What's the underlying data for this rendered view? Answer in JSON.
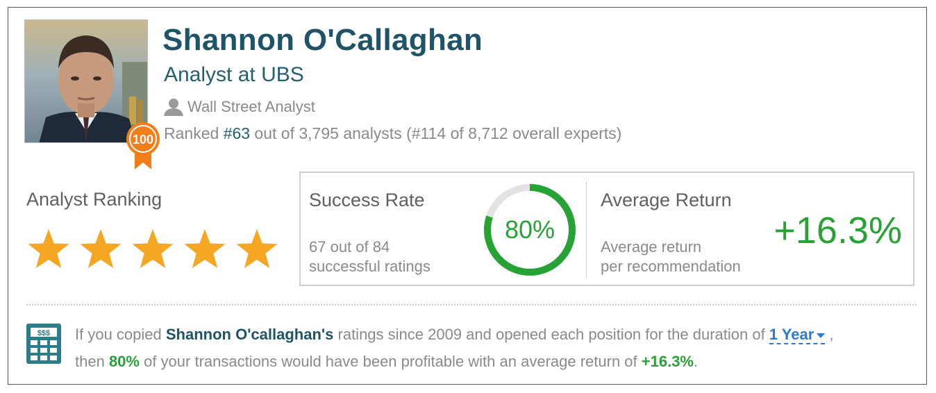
{
  "analyst": {
    "name": "Shannon O'Callaghan",
    "role": "Analyst at UBS",
    "type": "Wall Street Analyst",
    "badge": "100",
    "ranked_prefix": "Ranked ",
    "rank_number": "#63",
    "ranked_suffix": " out of 3,795 analysts (#114 of 8,712 overall experts)"
  },
  "ranking": {
    "title": "Analyst Ranking",
    "stars": 5,
    "max_stars": 5
  },
  "success": {
    "title": "Success Rate",
    "line1": "67 out of 84",
    "line2": "successful ratings",
    "percent_label": "80%",
    "fraction": 0.8
  },
  "avg_return": {
    "title": "Average Return",
    "line1": "Average return",
    "line2": "per recommendation",
    "value": "+16.3%"
  },
  "summary": {
    "part1": "If you copied ",
    "name": "Shannon O'callaghan's",
    "part2": " ratings since 2009 and opened each position for the duration of ",
    "duration": "1 Year",
    "part3": " ,",
    "part4": "then ",
    "rate": "80%",
    "part5": " of your transactions would have been profitable with an average return of ",
    "return": "+16.3%",
    "part6": "."
  },
  "colors": {
    "name": "#1f5468",
    "green": "#27a234",
    "star": "#f5a623",
    "badge": "#f07e1b",
    "link": "#2a7ad0"
  },
  "icons": {
    "person": "person-icon",
    "calculator": "calculator-icon",
    "star": "star-icon",
    "badge": "rank-badge-icon"
  }
}
